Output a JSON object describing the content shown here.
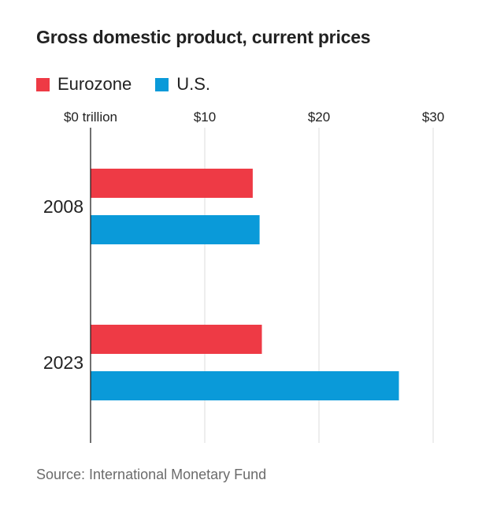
{
  "chart_data": {
    "type": "bar",
    "orientation": "horizontal",
    "title": "Gross domestic product, current prices",
    "categories": [
      "2008",
      "2023"
    ],
    "series": [
      {
        "name": "Eurozone",
        "color": "#ee3a45",
        "values": [
          14.2,
          15.0
        ]
      },
      {
        "name": "U.S.",
        "color": "#0a9ad9",
        "values": [
          14.8,
          27.0
        ]
      }
    ],
    "xlim": [
      0,
      30
    ],
    "ticks": [
      {
        "value": 0,
        "label": "$0 trillion"
      },
      {
        "value": 10,
        "label": "$10"
      },
      {
        "value": 20,
        "label": "$20"
      },
      {
        "value": 30,
        "label": "$30"
      }
    ],
    "grid": true,
    "legend_position": "top-left",
    "source": "Source: International Monetary Fund"
  }
}
